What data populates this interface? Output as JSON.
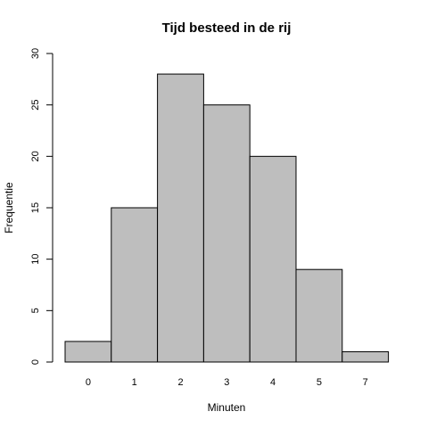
{
  "chart_data": {
    "type": "bar",
    "title": "Tijd besteed in de rij",
    "xlabel": "Minuten",
    "ylabel": "Frequentie",
    "categories": [
      "0",
      "1",
      "2",
      "3",
      "4",
      "5",
      "7"
    ],
    "values": [
      2,
      15,
      28,
      25,
      20,
      9,
      1
    ],
    "ylim": [
      0,
      30
    ],
    "yticks": [
      "0",
      "5",
      "10",
      "15",
      "20",
      "25",
      "30"
    ],
    "bar_color": "#bebebe",
    "grid": false,
    "legend": "none"
  }
}
